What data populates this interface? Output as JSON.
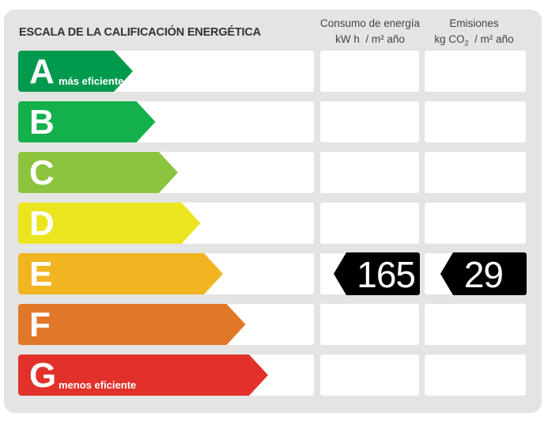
{
  "header": {
    "title": "ESCALA DE LA CALIFICACIÓN ENERGÉTICA",
    "consumo_line1": "Consumo de energía",
    "consumo_line2": "kW h  / m² año",
    "emisiones_line1": "Emisiones",
    "emisiones_line2_a": "kg CO",
    "emisiones_line2_sub": "2",
    "emisiones_line2_b": "  / m² año"
  },
  "ratings": [
    {
      "letter": "A",
      "label": "más eficiente",
      "color": "#009a4e"
    },
    {
      "letter": "B",
      "label": "",
      "color": "#13b04b"
    },
    {
      "letter": "C",
      "label": "",
      "color": "#8dc43f"
    },
    {
      "letter": "D",
      "label": "",
      "color": "#ebe51f"
    },
    {
      "letter": "E",
      "label": "",
      "color": "#f0b521"
    },
    {
      "letter": "F",
      "label": "",
      "color": "#e17829"
    },
    {
      "letter": "G",
      "label": "menos eficiente",
      "color": "#e2312a"
    }
  ],
  "result": {
    "rating": "E",
    "consumo": "165",
    "emisiones": "29"
  }
}
